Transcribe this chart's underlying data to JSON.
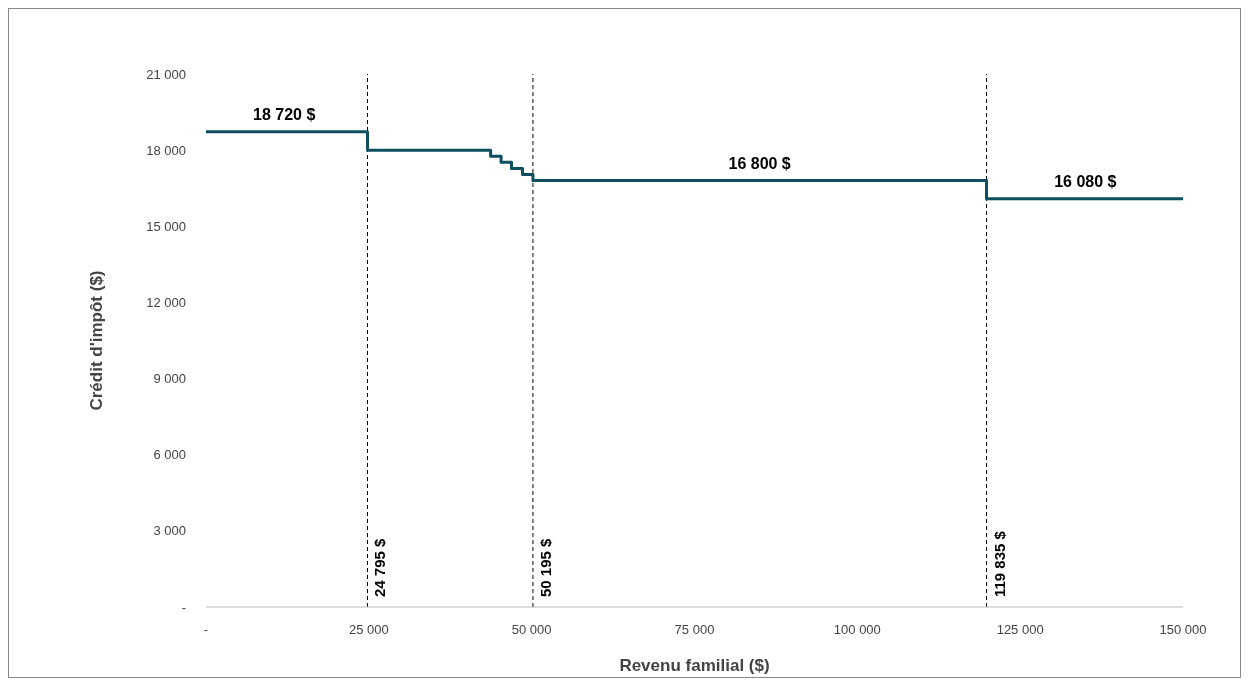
{
  "chart_data": {
    "type": "step",
    "xlabel": "Revenu familial ($)",
    "ylabel": "Crédit d'impôt ($)",
    "x": [
      0,
      24795,
      43700,
      45300,
      46900,
      48600,
      50195,
      119835,
      150000
    ],
    "series": [
      {
        "color": "#0d4f5f",
        "values": [
          18720,
          18000,
          17760,
          17520,
          17280,
          17040,
          16800,
          16080,
          16080
        ]
      }
    ],
    "xlim": [
      0,
      150000
    ],
    "xticks": [
      {
        "value": 0,
        "label": "-"
      },
      {
        "value": 25000,
        "label": "25 000"
      },
      {
        "value": 50000,
        "label": "50 000"
      },
      {
        "value": 75000,
        "label": "75 000"
      },
      {
        "value": 100000,
        "label": "100 000"
      },
      {
        "value": 125000,
        "label": "125 000"
      },
      {
        "value": 150000,
        "label": "150 000"
      }
    ],
    "ylim": [
      0,
      21000
    ],
    "yticks": [
      {
        "value": 0,
        "label": "-"
      },
      {
        "value": 3000,
        "label": "3 000"
      },
      {
        "value": 6000,
        "label": "6 000"
      },
      {
        "value": 9000,
        "label": "9 000"
      },
      {
        "value": 12000,
        "label": "12 000"
      },
      {
        "value": 15000,
        "label": "15 000"
      },
      {
        "value": 18000,
        "label": "18 000"
      },
      {
        "value": 21000,
        "label": "21 000"
      }
    ],
    "ref_lines": [
      {
        "axis": "x",
        "value": 24795,
        "label": "24 795 $",
        "color": "#000000",
        "line_style": "dashed"
      },
      {
        "axis": "x",
        "value": 50195,
        "label": "50 195 $",
        "color": "#000000",
        "line_style": "dashed"
      },
      {
        "axis": "x",
        "value": 119835,
        "label": "119 835 $",
        "color": "#000000",
        "line_style": "dashed"
      }
    ],
    "annotations": [
      {
        "text": "18 720 $",
        "x": 12000,
        "y": 18720
      },
      {
        "text": "16 800 $",
        "x": 85000,
        "y": 16800
      },
      {
        "text": "16 080 $",
        "x": 135000,
        "y": 16080
      }
    ]
  }
}
